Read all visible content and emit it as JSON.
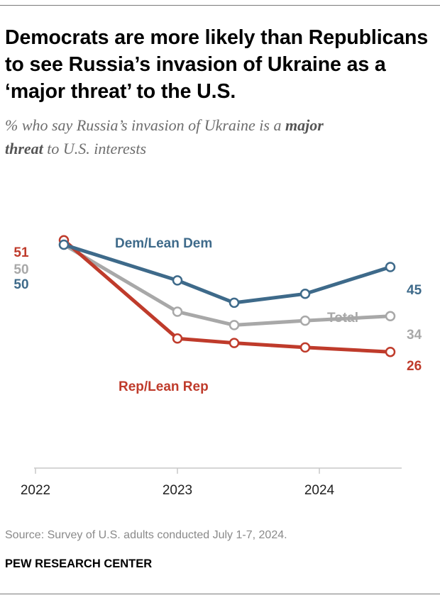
{
  "title": "Democrats are more likely than Republicans to see Russia’s invasion of Ukraine as a ‘major threat’ to the U.S.",
  "subtitle": {
    "part1": "% who say Russia’s invasion of Ukraine is a ",
    "bold1": "major",
    "bold2": "threat",
    "part2": " to U.S. interests"
  },
  "source": "Source: Survey of U.S. adults conducted July 1-7, 2024.",
  "brand": "PEW RESEARCH CENTER",
  "colors": {
    "dem": "#3e6a8a",
    "rep": "#bf3b2b",
    "total": "#a8a8a8",
    "axis": "#c8c8c8",
    "text_gray": "#8a8a8a"
  },
  "chart_data": {
    "type": "line",
    "title": "",
    "xlabel": "",
    "ylabel": "",
    "x_ticks": [
      "2022",
      "2023",
      "2024"
    ],
    "x": [
      2022.2,
      2023.0,
      2023.4,
      2023.9,
      2024.5
    ],
    "ylim": [
      0,
      60
    ],
    "series": [
      {
        "key": "dem",
        "name": "Dem/Lean Dem",
        "values": [
          50,
          42,
          37,
          39,
          45
        ],
        "start_label": "50",
        "end_label": "45"
      },
      {
        "key": "total",
        "name": "Total",
        "values": [
          50,
          35,
          32,
          33,
          34
        ],
        "start_label": "50",
        "end_label": "34"
      },
      {
        "key": "rep",
        "name": "Rep/Lean Rep",
        "values": [
          51,
          29,
          28,
          27,
          26
        ],
        "start_label": "51",
        "end_label": "26"
      }
    ]
  }
}
